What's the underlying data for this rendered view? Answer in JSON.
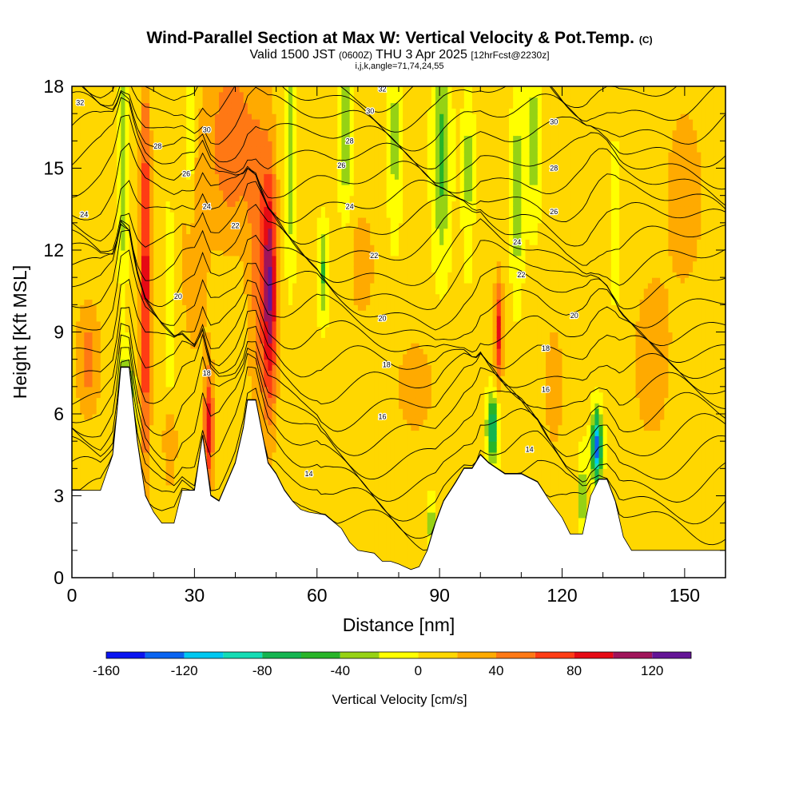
{
  "header": {
    "title": "Wind-Parallel Section at Max W: Vertical Velocity & Pot.Temp.",
    "copyright": "(C)",
    "valid_prefix": "Valid 1500 JST",
    "valid_utc": "(0600Z)",
    "valid_date": "THU 3 Apr 2025",
    "forecast_info": "[12hrFcst@2230z]",
    "indices": "i,j,k,angle=71,74,24,55"
  },
  "chart_data": {
    "type": "heatmap",
    "xlabel": "Distance [nm]",
    "ylabel": "Height [Kft MSL]",
    "xlim": [
      0,
      160
    ],
    "ylim": [
      0,
      18
    ],
    "x_ticks": [
      0,
      30,
      60,
      90,
      120,
      150
    ],
    "y_ticks": [
      0,
      3,
      6,
      9,
      12,
      15,
      18
    ],
    "field": "Vertical Velocity [cm/s]",
    "colorbar": {
      "label": "Vertical Velocity [cm/s]",
      "boundaries": [
        -160,
        -140,
        -120,
        -100,
        -80,
        -60,
        -40,
        -20,
        0,
        20,
        40,
        60,
        80,
        100,
        120,
        140
      ],
      "tick_labels": [
        -160,
        -120,
        -80,
        -40,
        0,
        40,
        80,
        120
      ],
      "colors": [
        "#0a14f0",
        "#0a64f0",
        "#00c8f0",
        "#14dcb4",
        "#14b450",
        "#28b428",
        "#96d214",
        "#ffff00",
        "#ffd700",
        "#ffaa00",
        "#ff7814",
        "#ff3c14",
        "#e60a14",
        "#a0145a",
        "#641496"
      ]
    },
    "terrain_kft": [
      [
        0,
        3.2
      ],
      [
        7,
        3.2
      ],
      [
        10,
        4.5
      ],
      [
        11,
        6
      ],
      [
        12,
        7.7
      ],
      [
        14,
        7.7
      ],
      [
        16,
        5
      ],
      [
        18,
        3
      ],
      [
        20,
        2.4
      ],
      [
        22,
        2.0
      ],
      [
        25,
        2.0
      ],
      [
        27,
        3.2
      ],
      [
        30,
        3.2
      ],
      [
        32,
        5.2
      ],
      [
        34,
        3.0
      ],
      [
        36,
        2.8
      ],
      [
        38,
        3.5
      ],
      [
        40,
        4.2
      ],
      [
        42,
        5.5
      ],
      [
        43,
        6.5
      ],
      [
        45,
        6.5
      ],
      [
        48,
        4.2
      ],
      [
        50,
        3.8
      ],
      [
        52,
        3.2
      ],
      [
        54,
        2.8
      ],
      [
        56,
        2.5
      ],
      [
        58,
        2.4
      ],
      [
        62,
        2.3
      ],
      [
        66,
        1.8
      ],
      [
        68,
        1.3
      ],
      [
        70,
        1.0
      ],
      [
        74,
        0.9
      ],
      [
        76,
        0.6
      ],
      [
        78,
        0.6
      ],
      [
        80,
        0.5
      ],
      [
        83,
        0.3
      ],
      [
        85,
        0.4
      ],
      [
        87,
        1.0
      ],
      [
        89,
        2.0
      ],
      [
        91,
        2.8
      ],
      [
        94,
        3.5
      ],
      [
        96,
        4.0
      ],
      [
        98,
        4.0
      ],
      [
        100,
        4.5
      ],
      [
        102,
        4.2
      ],
      [
        104,
        4.0
      ],
      [
        106,
        3.8
      ],
      [
        110,
        3.8
      ],
      [
        114,
        3.5
      ],
      [
        117,
        2.8
      ],
      [
        120,
        2.2
      ],
      [
        122,
        1.6
      ],
      [
        125,
        1.6
      ],
      [
        127,
        3.0
      ],
      [
        129,
        3.6
      ],
      [
        131,
        3.6
      ],
      [
        133,
        2.8
      ],
      [
        135,
        1.5
      ],
      [
        137,
        1.0
      ],
      [
        145,
        1.0
      ],
      [
        155,
        1.0
      ],
      [
        160,
        1.0
      ]
    ],
    "theta_contour_labels": [
      {
        "text": "32",
        "x": 2,
        "y": 17.4
      },
      {
        "text": "28",
        "x": 21,
        "y": 15.8
      },
      {
        "text": "30",
        "x": 33,
        "y": 16.4
      },
      {
        "text": "26",
        "x": 28,
        "y": 14.8
      },
      {
        "text": "24",
        "x": 3,
        "y": 13.3
      },
      {
        "text": "24",
        "x": 33,
        "y": 13.6
      },
      {
        "text": "22",
        "x": 40,
        "y": 12.9
      },
      {
        "text": "20",
        "x": 26,
        "y": 10.3
      },
      {
        "text": "18",
        "x": 33,
        "y": 7.5
      },
      {
        "text": "32",
        "x": 76,
        "y": 17.9
      },
      {
        "text": "30",
        "x": 73,
        "y": 17.1
      },
      {
        "text": "28",
        "x": 68,
        "y": 16.0
      },
      {
        "text": "26",
        "x": 66,
        "y": 15.1
      },
      {
        "text": "24",
        "x": 68,
        "y": 13.6
      },
      {
        "text": "22",
        "x": 74,
        "y": 11.8
      },
      {
        "text": "20",
        "x": 76,
        "y": 9.5
      },
      {
        "text": "18",
        "x": 77,
        "y": 7.8
      },
      {
        "text": "16",
        "x": 76,
        "y": 5.9
      },
      {
        "text": "14",
        "x": 58,
        "y": 3.8
      },
      {
        "text": "30",
        "x": 118,
        "y": 16.7
      },
      {
        "text": "28",
        "x": 118,
        "y": 15.0
      },
      {
        "text": "26",
        "x": 118,
        "y": 13.4
      },
      {
        "text": "24",
        "x": 109,
        "y": 12.3
      },
      {
        "text": "22",
        "x": 110,
        "y": 11.1
      },
      {
        "text": "20",
        "x": 123,
        "y": 9.6
      },
      {
        "text": "18",
        "x": 116,
        "y": 8.4
      },
      {
        "text": "16",
        "x": 116,
        "y": 6.9
      },
      {
        "text": "14",
        "x": 112,
        "y": 4.7
      }
    ]
  }
}
